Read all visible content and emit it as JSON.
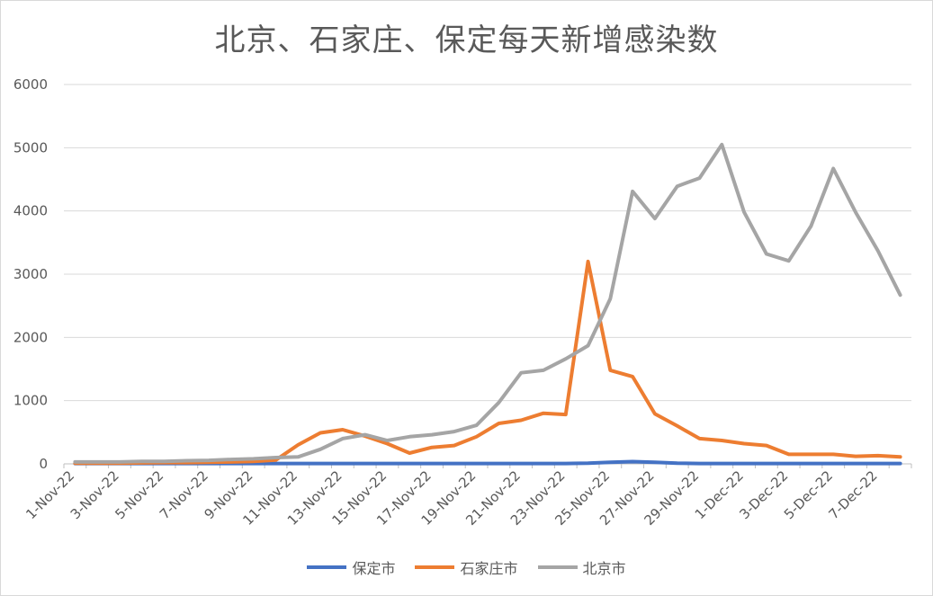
{
  "chart_data": {
    "type": "line",
    "title": "北京、石家庄、保定每天新增感染数",
    "xlabel": "",
    "ylabel": "",
    "ylim": [
      0,
      6000
    ],
    "yticks": [
      0,
      1000,
      2000,
      3000,
      4000,
      5000,
      6000
    ],
    "grid": true,
    "legend_position": "bottom",
    "x": [
      "1-Nov-22",
      "2-Nov-22",
      "3-Nov-22",
      "4-Nov-22",
      "5-Nov-22",
      "6-Nov-22",
      "7-Nov-22",
      "8-Nov-22",
      "9-Nov-22",
      "10-Nov-22",
      "11-Nov-22",
      "12-Nov-22",
      "13-Nov-22",
      "14-Nov-22",
      "15-Nov-22",
      "16-Nov-22",
      "17-Nov-22",
      "18-Nov-22",
      "19-Nov-22",
      "20-Nov-22",
      "21-Nov-22",
      "22-Nov-22",
      "23-Nov-22",
      "24-Nov-22",
      "25-Nov-22",
      "26-Nov-22",
      "27-Nov-22",
      "28-Nov-22",
      "29-Nov-22",
      "30-Nov-22",
      "1-Dec-22",
      "2-Dec-22",
      "3-Dec-22",
      "4-Dec-22",
      "5-Dec-22",
      "6-Dec-22",
      "7-Dec-22",
      "8-Dec-22"
    ],
    "x_tick_labels": [
      "1-Nov-22",
      "3-Nov-22",
      "5-Nov-22",
      "7-Nov-22",
      "9-Nov-22",
      "11-Nov-22",
      "13-Nov-22",
      "15-Nov-22",
      "17-Nov-22",
      "19-Nov-22",
      "21-Nov-22",
      "23-Nov-22",
      "25-Nov-22",
      "27-Nov-22",
      "29-Nov-22",
      "1-Dec-22",
      "3-Dec-22",
      "5-Dec-22",
      "7-Dec-22"
    ],
    "series": [
      {
        "name": "保定市",
        "color": "#4472C4",
        "values": [
          5,
          5,
          5,
          5,
          5,
          5,
          5,
          5,
          5,
          5,
          5,
          5,
          5,
          5,
          5,
          5,
          5,
          5,
          5,
          5,
          5,
          5,
          5,
          10,
          25,
          35,
          25,
          10,
          5,
          5,
          5,
          5,
          5,
          5,
          5,
          5,
          5,
          5
        ]
      },
      {
        "name": "石家庄市",
        "color": "#ED7D31",
        "values": [
          10,
          10,
          10,
          15,
          20,
          20,
          25,
          30,
          40,
          60,
          300,
          490,
          540,
          440,
          320,
          170,
          260,
          290,
          430,
          640,
          690,
          800,
          780,
          3200,
          1480,
          1380,
          790,
          600,
          400,
          370,
          320,
          290,
          150,
          150,
          150,
          120,
          130,
          110
        ]
      },
      {
        "name": "北京市",
        "color": "#A5A5A5",
        "values": [
          30,
          30,
          30,
          40,
          40,
          50,
          55,
          70,
          80,
          100,
          110,
          230,
          400,
          460,
          370,
          430,
          460,
          510,
          610,
          970,
          1440,
          1480,
          1660,
          1870,
          2610,
          4310,
          3880,
          4390,
          4520,
          5050,
          3980,
          3320,
          3210,
          3760,
          4670,
          3980,
          3370,
          2670
        ]
      }
    ]
  }
}
